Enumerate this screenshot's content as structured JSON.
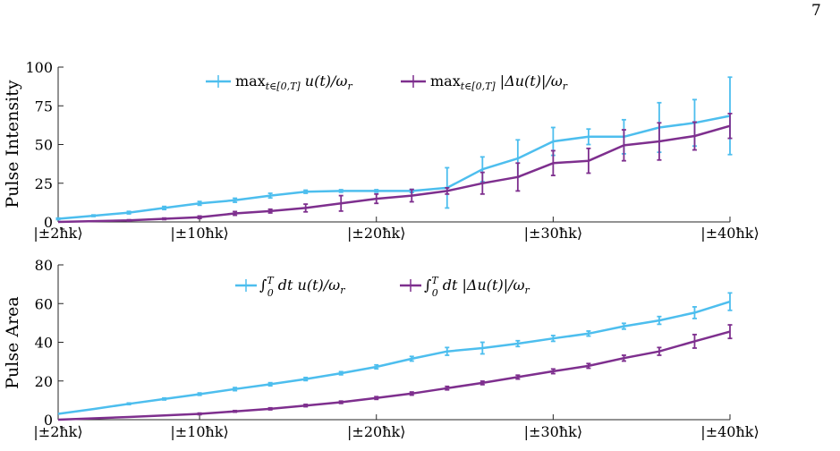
{
  "page_number": "7",
  "chart_data": [
    {
      "type": "line",
      "ylabel": "Pulse Intensity",
      "xlabel": "",
      "ylim": [
        0,
        100
      ],
      "yticks": [
        "0",
        "25",
        "50",
        "75",
        "100"
      ],
      "xtick_labels": [
        "|±2ħk⟩",
        "|±10ħk⟩",
        "|±20ħk⟩",
        "|±30ħk⟩",
        "|±40ħk⟩"
      ],
      "xtick_values": [
        2,
        10,
        20,
        30,
        40
      ],
      "xlim": [
        2,
        40
      ],
      "grid": false,
      "legend_position": "top",
      "series": [
        {
          "name": "max_{t∈[0,T]} u(t)/ω_r",
          "color": "#4DBEEE",
          "x": [
            2,
            4,
            6,
            8,
            10,
            12,
            14,
            16,
            18,
            20,
            22,
            24,
            26,
            28,
            30,
            32,
            34,
            36,
            38,
            40
          ],
          "y": [
            2,
            4,
            6,
            9,
            12,
            14,
            17,
            19.5,
            20,
            20,
            20,
            22,
            34,
            41,
            52,
            55,
            55,
            61,
            64,
            68.5
          ],
          "err": [
            0.5,
            0.5,
            0.8,
            1,
            1.2,
            1.3,
            1.5,
            1,
            0.8,
            0.8,
            1,
            13,
            8,
            12,
            9,
            5,
            11,
            16,
            15,
            25
          ]
        },
        {
          "name": "max_{t∈[0,T]} |Δu(t)|/ω_r",
          "color": "#7E2F8E",
          "x": [
            2,
            4,
            6,
            8,
            10,
            12,
            14,
            16,
            18,
            20,
            22,
            24,
            26,
            28,
            30,
            32,
            34,
            36,
            38,
            40
          ],
          "y": [
            0,
            0.5,
            1,
            2,
            3,
            5.5,
            7,
            9,
            12,
            15,
            17,
            20,
            25,
            29,
            38,
            39.5,
            49.5,
            52,
            55.5,
            62
          ],
          "err": [
            0.3,
            0.3,
            0.4,
            0.5,
            0.8,
            1.2,
            1.2,
            2.5,
            5,
            3,
            4,
            2,
            7,
            9,
            8,
            8,
            10,
            12,
            9,
            8
          ]
        }
      ]
    },
    {
      "type": "line",
      "ylabel": "Pulse Area",
      "xlabel": "",
      "ylim": [
        0,
        80
      ],
      "yticks": [
        "0",
        "20",
        "40",
        "60",
        "80"
      ],
      "xtick_labels": [
        "|±2ħk⟩",
        "|±10ħk⟩",
        "|±20ħk⟩",
        "|±30ħk⟩",
        "|±40ħk⟩"
      ],
      "xtick_values": [
        2,
        10,
        20,
        30,
        40
      ],
      "xlim": [
        2,
        40
      ],
      "grid": false,
      "legend_position": "top",
      "series": [
        {
          "name": "∫_0^T dt u(t)/ω_r",
          "color": "#4DBEEE",
          "x": [
            2,
            4,
            6,
            8,
            10,
            12,
            14,
            16,
            18,
            20,
            22,
            24,
            26,
            28,
            30,
            32,
            34,
            36,
            38,
            40
          ],
          "y": [
            3,
            5.5,
            8.2,
            10.7,
            13.2,
            15.8,
            18.3,
            21,
            24,
            27.3,
            31.5,
            35.3,
            37,
            39.3,
            42,
            44.5,
            48.3,
            51.3,
            55.3,
            61
          ],
          "err": [
            0.3,
            0.3,
            0.4,
            0.5,
            0.6,
            0.8,
            0.8,
            0.8,
            0.8,
            1,
            1.2,
            2,
            3,
            1.5,
            1.5,
            1.3,
            1.5,
            2,
            3,
            4.5
          ]
        },
        {
          "name": "∫_0^T dt |Δu(t)|/ω_r",
          "color": "#7E2F8E",
          "x": [
            2,
            4,
            6,
            8,
            10,
            12,
            14,
            16,
            18,
            20,
            22,
            24,
            26,
            28,
            30,
            32,
            34,
            36,
            38,
            40
          ],
          "y": [
            0,
            0.7,
            1.4,
            2.2,
            3,
            4.3,
            5.6,
            7.3,
            9,
            11.2,
            13.5,
            16.3,
            19,
            22,
            25,
            27.8,
            31.8,
            35.3,
            40.5,
            45.5
          ],
          "err": [
            0.2,
            0.2,
            0.3,
            0.3,
            0.4,
            0.4,
            0.5,
            0.6,
            0.6,
            0.7,
            0.8,
            0.9,
            0.9,
            1,
            1.2,
            1.2,
            1.5,
            2,
            3.5,
            3.5
          ]
        }
      ]
    }
  ],
  "legend_top": {
    "s1_func": "max",
    "s1_sub": "t∈[0,T]",
    "s1_expr": " u(t)/ω",
    "s1_sub2": "r",
    "s2_func": "max",
    "s2_sub": "t∈[0,T]",
    "s2_expr": " |Δu(t)|/ω",
    "s2_sub2": "r"
  },
  "legend_bottom": {
    "s1_int": "∫",
    "s1_sup": "T",
    "s1_sub": "0",
    "s1_expr": " dt u(t)/ω",
    "s1_sub2": "r",
    "s2_int": "∫",
    "s2_sup": "T",
    "s2_sub": "0",
    "s2_expr": " dt |Δu(t)|/ω",
    "s2_sub2": "r"
  }
}
